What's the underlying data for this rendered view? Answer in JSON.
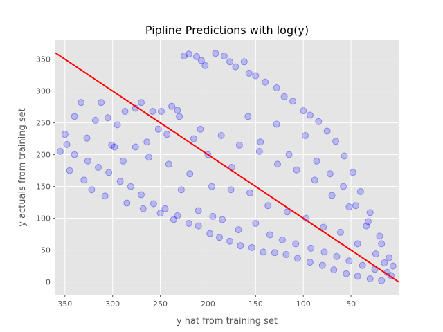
{
  "chart_data": {
    "type": "scatter",
    "title": "Pipline Predictions with log(y)",
    "xlabel": "y hat from training set",
    "ylabel": "y actuals from training set",
    "xlim": [
      360,
      0
    ],
    "ylim": [
      -20,
      380
    ],
    "x_ticks": [
      350,
      300,
      250,
      200,
      150,
      100,
      50
    ],
    "y_ticks": [
      0,
      50,
      100,
      150,
      200,
      250,
      300,
      350
    ],
    "grid": true,
    "background": "#e5e5e5",
    "grid_color": "#ffffff",
    "point_color": "#0000ff",
    "point_alpha": 0.2,
    "line_color": "#ff0000",
    "reference_line": {
      "x": [
        360,
        0
      ],
      "y": [
        360,
        0
      ]
    },
    "points": [
      [
        340,
        260
      ],
      [
        333,
        282
      ],
      [
        318,
        254
      ],
      [
        312,
        282
      ],
      [
        305,
        258
      ],
      [
        295,
        247
      ],
      [
        287,
        268
      ],
      [
        276,
        273
      ],
      [
        270,
        282
      ],
      [
        258,
        268
      ],
      [
        249,
        268
      ],
      [
        238,
        276
      ],
      [
        232,
        270
      ],
      [
        225,
        355
      ],
      [
        220,
        358
      ],
      [
        212,
        354
      ],
      [
        207,
        348
      ],
      [
        203,
        340
      ],
      [
        192,
        359
      ],
      [
        183,
        355
      ],
      [
        177,
        346
      ],
      [
        171,
        338
      ],
      [
        162,
        346
      ],
      [
        157,
        328
      ],
      [
        150,
        324
      ],
      [
        140,
        314
      ],
      [
        128,
        305
      ],
      [
        120,
        291
      ],
      [
        111,
        284
      ],
      [
        100,
        269
      ],
      [
        93,
        262
      ],
      [
        84,
        252
      ],
      [
        75,
        237
      ],
      [
        66,
        221
      ],
      [
        57,
        198
      ],
      [
        48,
        172
      ],
      [
        40,
        142
      ],
      [
        30,
        109
      ],
      [
        20,
        72
      ],
      [
        10,
        38
      ],
      [
        355,
        205
      ],
      [
        348,
        216
      ],
      [
        340,
        200
      ],
      [
        326,
        190
      ],
      [
        315,
        180
      ],
      [
        304,
        172
      ],
      [
        292,
        158
      ],
      [
        281,
        150
      ],
      [
        270,
        137
      ],
      [
        257,
        123
      ],
      [
        245,
        115
      ],
      [
        232,
        104
      ],
      [
        220,
        92
      ],
      [
        210,
        88
      ],
      [
        198,
        76
      ],
      [
        188,
        70
      ],
      [
        177,
        64
      ],
      [
        166,
        57
      ],
      [
        154,
        54
      ],
      [
        142,
        47
      ],
      [
        130,
        46
      ],
      [
        118,
        43
      ],
      [
        106,
        37
      ],
      [
        93,
        31
      ],
      [
        80,
        26
      ],
      [
        68,
        19
      ],
      [
        55,
        13
      ],
      [
        43,
        9
      ],
      [
        30,
        5
      ],
      [
        18,
        2
      ],
      [
        345,
        175
      ],
      [
        330,
        160
      ],
      [
        322,
        145
      ],
      [
        308,
        135
      ],
      [
        298,
        212
      ],
      [
        285,
        124
      ],
      [
        268,
        115
      ],
      [
        262,
        196
      ],
      [
        250,
        108
      ],
      [
        243,
        232
      ],
      [
        236,
        98
      ],
      [
        228,
        145
      ],
      [
        215,
        225
      ],
      [
        210,
        112
      ],
      [
        200,
        200
      ],
      [
        195,
        103
      ],
      [
        185,
        98
      ],
      [
        175,
        180
      ],
      [
        168,
        82
      ],
      [
        158,
        260
      ],
      [
        150,
        92
      ],
      [
        145,
        220
      ],
      [
        135,
        74
      ],
      [
        128,
        248
      ],
      [
        122,
        66
      ],
      [
        115,
        200
      ],
      [
        108,
        60
      ],
      [
        98,
        230
      ],
      [
        92,
        53
      ],
      [
        86,
        190
      ],
      [
        78,
        47
      ],
      [
        72,
        170
      ],
      [
        65,
        40
      ],
      [
        58,
        150
      ],
      [
        52,
        33
      ],
      [
        45,
        120
      ],
      [
        38,
        26
      ],
      [
        32,
        95
      ],
      [
        25,
        20
      ],
      [
        18,
        60
      ],
      [
        12,
        15
      ],
      [
        6,
        25
      ],
      [
        350,
        232
      ],
      [
        327,
        226
      ],
      [
        301,
        215
      ],
      [
        289,
        190
      ],
      [
        276,
        212
      ],
      [
        264,
        220
      ],
      [
        252,
        240
      ],
      [
        241,
        185
      ],
      [
        230,
        260
      ],
      [
        219,
        170
      ],
      [
        208,
        240
      ],
      [
        196,
        150
      ],
      [
        186,
        230
      ],
      [
        176,
        145
      ],
      [
        167,
        215
      ],
      [
        156,
        140
      ],
      [
        146,
        205
      ],
      [
        137,
        120
      ],
      [
        127,
        185
      ],
      [
        117,
        110
      ],
      [
        107,
        176
      ],
      [
        97,
        100
      ],
      [
        88,
        160
      ],
      [
        79,
        86
      ],
      [
        70,
        136
      ],
      [
        61,
        78
      ],
      [
        52,
        118
      ],
      [
        43,
        60
      ],
      [
        34,
        88
      ],
      [
        24,
        44
      ],
      [
        15,
        30
      ],
      [
        8,
        10
      ]
    ]
  }
}
